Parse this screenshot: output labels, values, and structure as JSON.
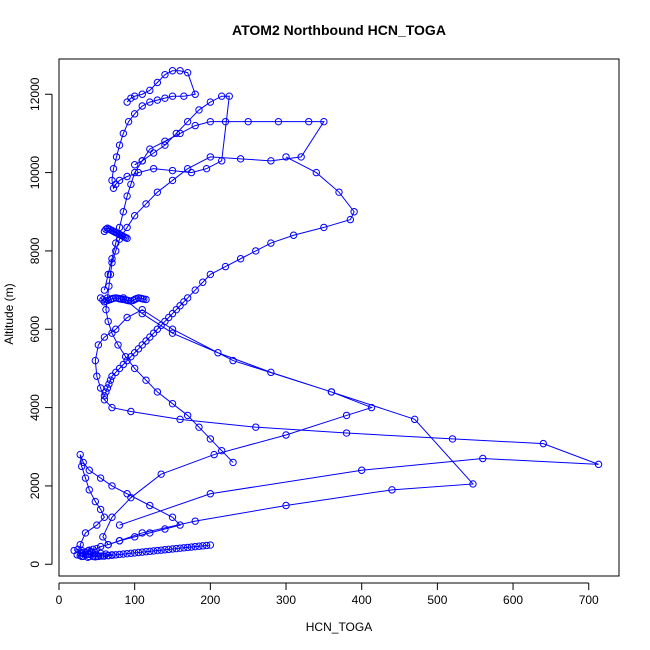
{
  "chart_data": {
    "type": "scatter",
    "title": "ATOM2 Northbound HCN_TOGA",
    "xlabel": "HCN_TOGA",
    "ylabel": "Altitude (m)",
    "xlim": [
      0,
      740
    ],
    "ylim": [
      -300,
      12900
    ],
    "x_ticks": [
      0,
      100,
      200,
      300,
      400,
      500,
      600,
      700
    ],
    "y_ticks": [
      0,
      2000,
      4000,
      6000,
      8000,
      10000,
      12000
    ],
    "grid": false,
    "legend": "none",
    "color": "#0000ff",
    "style": "points connected by lines",
    "series": [
      {
        "x": [
          20,
          25,
          30,
          35,
          32,
          28,
          24,
          30,
          38,
          45,
          40,
          35,
          30,
          28,
          35,
          50,
          60,
          55,
          48,
          40,
          35,
          30,
          28,
          32,
          40,
          55,
          70,
          90,
          120,
          150,
          160,
          140,
          120,
          100,
          80,
          65,
          55,
          50,
          45,
          40,
          38,
          42,
          48,
          55,
          62,
          70,
          65,
          58,
          52,
          48
        ],
        "y": [
          350,
          380,
          300,
          250,
          200,
          220,
          240,
          200,
          180,
          200,
          250,
          300,
          350,
          500,
          800,
          1000,
          1200,
          1400,
          1600,
          1900,
          2200,
          2500,
          2800,
          2600,
          2400,
          2200,
          2000,
          1800,
          1500,
          1200,
          1000,
          900,
          800,
          700,
          600,
          500,
          450,
          400,
          380,
          360,
          340,
          320,
          300,
          280,
          260,
          240,
          220,
          210,
          200,
          190
        ]
      },
      {
        "x": [
          80,
          200,
          400,
          560,
          713,
          640,
          520,
          380,
          260,
          160,
          95,
          70,
          60,
          55,
          50,
          48,
          52,
          60,
          75,
          90,
          110,
          150,
          230,
          360,
          470,
          547,
          440,
          300,
          180,
          110,
          80,
          65,
          58,
          70,
          95,
          135,
          205,
          300,
          380,
          413,
          360,
          280,
          210,
          150,
          110,
          85
        ],
        "y": [
          1000,
          1800,
          2400,
          2700,
          2550,
          3080,
          3200,
          3350,
          3500,
          3700,
          3900,
          4000,
          4200,
          4500,
          4800,
          5200,
          5600,
          5800,
          6000,
          6300,
          6500,
          6000,
          5200,
          4400,
          3700,
          2050,
          1900,
          1500,
          1100,
          800,
          600,
          500,
          700,
          1200,
          1700,
          2300,
          2800,
          3300,
          3800,
          4000,
          4400,
          4900,
          5400,
          5900,
          6400,
          6800
        ]
      },
      {
        "x": [
          60,
          65,
          70,
          75,
          80,
          85,
          90,
          95,
          100,
          110,
          120,
          140,
          160,
          180,
          200,
          220,
          250,
          290,
          330,
          350,
          320,
          280,
          240,
          200,
          170,
          150,
          130,
          115,
          100,
          90,
          80,
          75,
          70,
          68,
          66,
          64,
          62,
          65,
          70,
          78,
          88,
          100,
          115,
          130,
          150,
          170,
          185,
          200,
          215,
          230
        ],
        "y": [
          7000,
          7400,
          7800,
          8200,
          8600,
          9000,
          9400,
          9700,
          10000,
          10300,
          10600,
          10800,
          11000,
          11200,
          11300,
          11300,
          11300,
          11300,
          11300,
          11300,
          10400,
          10300,
          10350,
          10400,
          10100,
          9800,
          9500,
          9200,
          8900,
          8600,
          8300,
          8000,
          7700,
          7400,
          7100,
          6800,
          6500,
          6200,
          5900,
          5600,
          5300,
          5000,
          4700,
          4400,
          4100,
          3800,
          3500,
          3200,
          2900,
          2600
        ]
      },
      {
        "x": [
          90,
          95,
          100,
          110,
          120,
          130,
          140,
          150,
          160,
          170,
          180,
          165,
          150,
          140,
          130,
          120,
          110,
          100,
          92,
          85,
          80,
          76,
          72,
          70,
          72,
          75,
          80,
          90,
          105,
          125,
          150,
          175,
          195,
          215,
          225,
          215,
          200,
          185,
          170,
          155,
          140,
          125,
          110,
          100
        ],
        "y": [
          11800,
          11900,
          11950,
          12000,
          12100,
          12300,
          12500,
          12600,
          12600,
          12550,
          12000,
          11950,
          11950,
          11900,
          11850,
          11800,
          11700,
          11500,
          11300,
          11000,
          10700,
          10400,
          10100,
          9800,
          9600,
          9700,
          9800,
          9900,
          10000,
          10100,
          10050,
          10000,
          10100,
          10300,
          11950,
          11950,
          11800,
          11600,
          11300,
          11000,
          10700,
          10500,
          10300,
          10200
        ]
      },
      {
        "x": [
          300,
          340,
          370,
          390,
          385,
          350,
          310,
          280,
          260,
          240,
          220,
          200,
          190,
          180,
          170,
          165,
          160,
          155,
          150,
          145,
          140,
          135,
          130,
          125,
          120,
          115,
          110,
          105,
          100,
          95,
          90,
          85,
          80,
          75,
          70,
          68,
          66,
          64,
          62,
          60
        ],
        "y": [
          10400,
          10000,
          9500,
          9000,
          8800,
          8600,
          8400,
          8200,
          8000,
          7800,
          7600,
          7400,
          7200,
          7000,
          6800,
          6700,
          6600,
          6500,
          6400,
          6300,
          6200,
          6100,
          6000,
          5900,
          5800,
          5700,
          5600,
          5500,
          5400,
          5300,
          5200,
          5100,
          5000,
          4900,
          4800,
          4700,
          4600,
          4500,
          4400,
          4300
        ]
      },
      {
        "x": [
          40,
          45,
          50,
          55,
          60,
          65,
          70,
          75,
          80,
          85,
          90,
          95,
          100,
          105,
          110,
          115,
          120,
          125,
          130,
          135,
          140,
          145,
          150,
          155,
          160,
          165,
          170,
          175,
          180,
          185,
          190,
          195,
          200
        ],
        "y": [
          200,
          200,
          200,
          210,
          210,
          220,
          230,
          240,
          250,
          260,
          270,
          280,
          290,
          300,
          310,
          320,
          330,
          340,
          350,
          360,
          370,
          380,
          390,
          400,
          410,
          420,
          430,
          440,
          450,
          460,
          470,
          480,
          490
        ]
      },
      {
        "x": [
          55,
          58,
          60,
          62,
          65,
          68,
          70,
          72,
          75,
          78,
          80,
          82,
          85,
          88,
          90,
          92,
          95,
          98,
          100,
          102,
          105,
          108,
          110,
          112,
          115
        ],
        "y": [
          6800,
          6750,
          6700,
          6720,
          6740,
          6760,
          6780,
          6790,
          6800,
          6790,
          6780,
          6770,
          6760,
          6750,
          6740,
          6730,
          6720,
          6740,
          6760,
          6780,
          6800,
          6790,
          6780,
          6770,
          6760
        ]
      },
      {
        "x": [
          60,
          62,
          64,
          66,
          68,
          70,
          72,
          74,
          76,
          78,
          80,
          82,
          84,
          86,
          88,
          90
        ],
        "y": [
          8500,
          8550,
          8580,
          8560,
          8540,
          8520,
          8500,
          8480,
          8460,
          8440,
          8420,
          8400,
          8380,
          8360,
          8340,
          8320
        ]
      }
    ]
  }
}
